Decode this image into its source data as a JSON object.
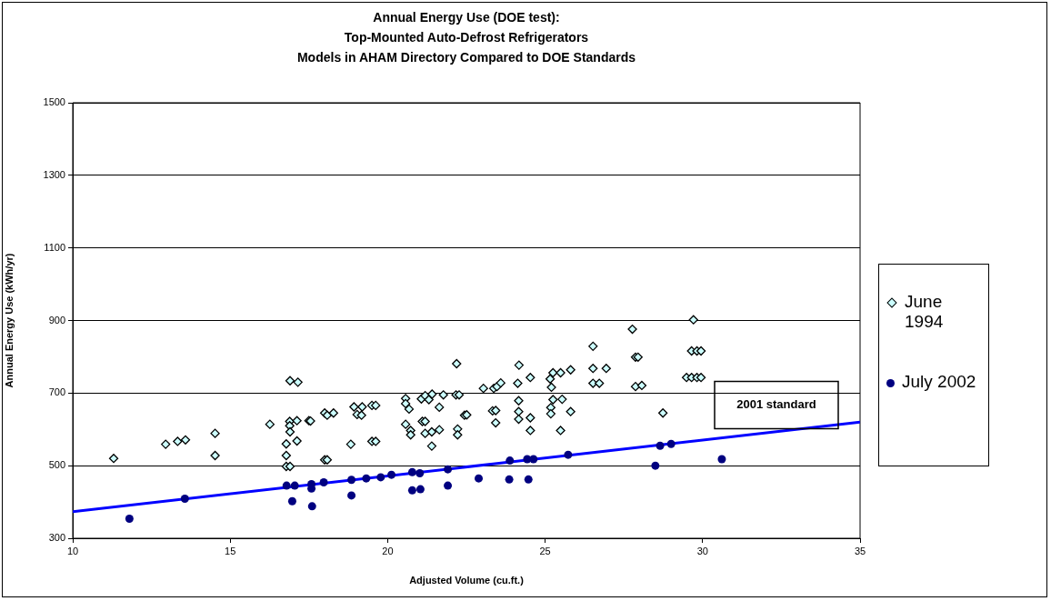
{
  "chart_data": {
    "type": "scatter",
    "title": "Annual Energy Use (DOE test):\nTop-Mounted Auto-Defrost Refrigerators\nModels in AHAM Directory Compared to DOE Standards",
    "xlabel": "Adjusted Volume (cu.ft.)",
    "ylabel": "Annual Energy Use (kWh/yr)",
    "xlim": [
      10,
      35
    ],
    "xticks": [
      10,
      15,
      20,
      25,
      30,
      35
    ],
    "ylim": [
      300,
      1500
    ],
    "yticks": [
      300,
      500,
      700,
      900,
      1100,
      1300,
      1500
    ],
    "grid": "y",
    "legend": "right",
    "annotations": [
      "2001 standard"
    ],
    "series": [
      {
        "name": "June 1994",
        "color": "#ccffff",
        "marker": "diamond",
        "x": [
          11.3,
          12.95,
          13.33,
          13.58,
          14.52,
          14.52,
          16.26,
          16.78,
          16.78,
          16.78,
          16.9,
          16.9,
          17.15,
          16.89,
          16.89,
          16.9,
          17.12,
          17.12,
          17.5,
          17.55,
          18.0,
          18.08,
          18.28,
          18.0,
          18.08,
          18.83,
          18.93,
          19.03,
          19.19,
          19.17,
          19.5,
          19.62,
          19.5,
          19.62,
          20.57,
          20.57,
          20.68,
          20.57,
          20.73,
          20.73,
          21.07,
          21.19,
          21.31,
          21.41,
          21.64,
          21.77,
          21.1,
          21.19,
          21.19,
          21.4,
          21.64,
          21.4,
          22.17,
          22.27,
          22.19,
          22.44,
          22.51,
          22.22,
          22.22,
          23.04,
          23.37,
          23.47,
          23.59,
          23.33,
          23.43,
          23.43,
          24.13,
          24.17,
          24.16,
          24.16,
          24.16,
          24.53,
          24.53,
          24.53,
          25.16,
          25.25,
          25.2,
          25.25,
          25.18,
          25.18,
          25.49,
          25.54,
          25.49,
          25.81,
          25.81,
          26.52,
          26.52,
          26.52,
          26.72,
          26.94,
          27.77,
          27.87,
          27.95,
          27.87,
          28.07,
          28.74,
          29.71,
          29.65,
          29.82,
          29.95,
          29.49,
          29.65,
          29.82,
          29.95
        ],
        "values": [
          520,
          559,
          567,
          571,
          589,
          528,
          614,
          560,
          528,
          498,
          498,
          734,
          730,
          622,
          610,
          593,
          624,
          568,
          624,
          623,
          645,
          639,
          645,
          516,
          516,
          559,
          662,
          641,
          662,
          639,
          666,
          666,
          567,
          567,
          685,
          671,
          656,
          614,
          597,
          585,
          684,
          693,
          682,
          697,
          661,
          695,
          622,
          622,
          589,
          593,
          599,
          554,
          695,
          695,
          781,
          639,
          640,
          601,
          585,
          713,
          713,
          718,
          728,
          651,
          652,
          618,
          727,
          777,
          679,
          649,
          628,
          743,
          632,
          597,
          739,
          756,
          716,
          682,
          660,
          643,
          756,
          683,
          597,
          764,
          649,
          829,
          768,
          727,
          727,
          768,
          876,
          799,
          799,
          718,
          721,
          645,
          902,
          816,
          816,
          816,
          743,
          743,
          743,
          743
        ]
      },
      {
        "name": "July 2002",
        "color": "#000080",
        "marker": "circle",
        "x": [
          11.8,
          13.56,
          16.79,
          17.05,
          16.97,
          17.58,
          17.58,
          17.6,
          17.97,
          18.85,
          18.85,
          19.32,
          19.78,
          20.12,
          20.78,
          21.02,
          20.78,
          21.04,
          21.91,
          21.91,
          22.89,
          23.88,
          23.86,
          24.43,
          24.63,
          24.47,
          25.73,
          28.5,
          28.65,
          29.0,
          30.61
        ],
        "values": [
          354,
          409,
          445,
          445,
          402,
          449,
          437,
          388,
          454,
          461,
          418,
          465,
          468,
          475,
          482,
          479,
          432,
          435,
          490,
          445,
          465,
          514,
          462,
          518,
          518,
          462,
          530,
          500,
          555,
          560,
          518
        ]
      },
      {
        "type": "line",
        "color": "#0000ff",
        "x": [
          10,
          35
        ],
        "values": [
          373,
          620
        ]
      }
    ]
  }
}
